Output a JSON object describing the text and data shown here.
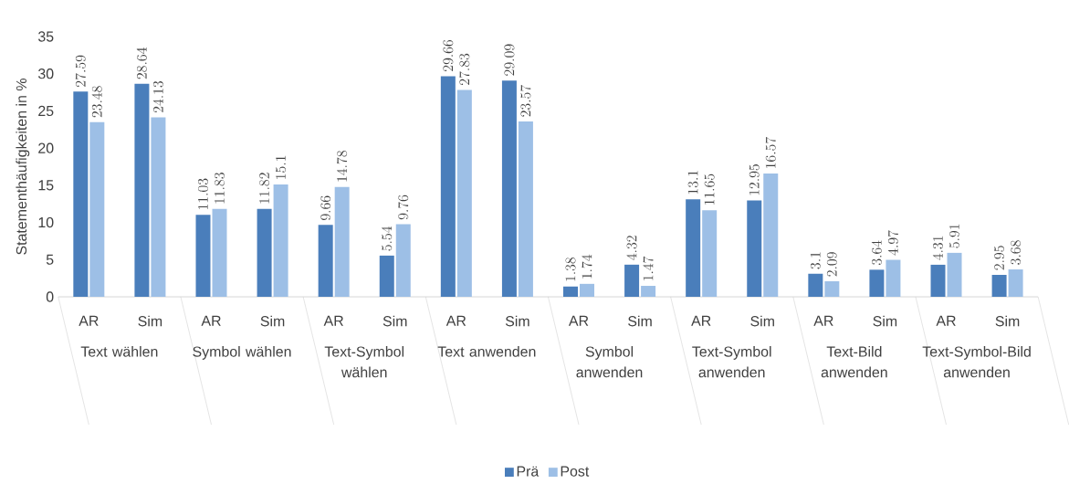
{
  "chart_data": {
    "type": "bar",
    "ylabel": "Statementhäufigkeiten in %",
    "categories": [
      "AR",
      "Sim",
      "AR",
      "Sim",
      "AR",
      "Sim",
      "AR",
      "Sim",
      "AR",
      "Sim",
      "AR",
      "Sim",
      "AR",
      "Sim",
      "AR",
      "Sim"
    ],
    "annotations": [
      "Text wählen",
      "Symbol wählen",
      "Text-Symbol wählen",
      "Text anwenden",
      "Symbol anwenden",
      "Text-Symbol anwenden",
      "Text-Bild anwenden",
      "Text-Symbol-Bild anwenden"
    ],
    "series": [
      {
        "name": "Prä",
        "color": "#4a7ebb",
        "values": [
          27.59,
          28.64,
          11.03,
          11.82,
          9.66,
          5.54,
          29.66,
          29.09,
          1.38,
          4.32,
          13.1,
          12.95,
          3.1,
          3.64,
          4.31,
          2.95
        ]
      },
      {
        "name": "Post",
        "color": "#9dbfe6",
        "values": [
          23.48,
          24.13,
          11.83,
          15.1,
          14.78,
          9.76,
          27.83,
          23.57,
          1.74,
          1.47,
          11.65,
          16.57,
          2.09,
          4.97,
          5.91,
          3.68
        ]
      }
    ],
    "ylim": [
      0,
      35
    ],
    "yticks": [
      0,
      5,
      10,
      15,
      20,
      25,
      30,
      35
    ],
    "data_labels": true,
    "legend": "bottom"
  }
}
